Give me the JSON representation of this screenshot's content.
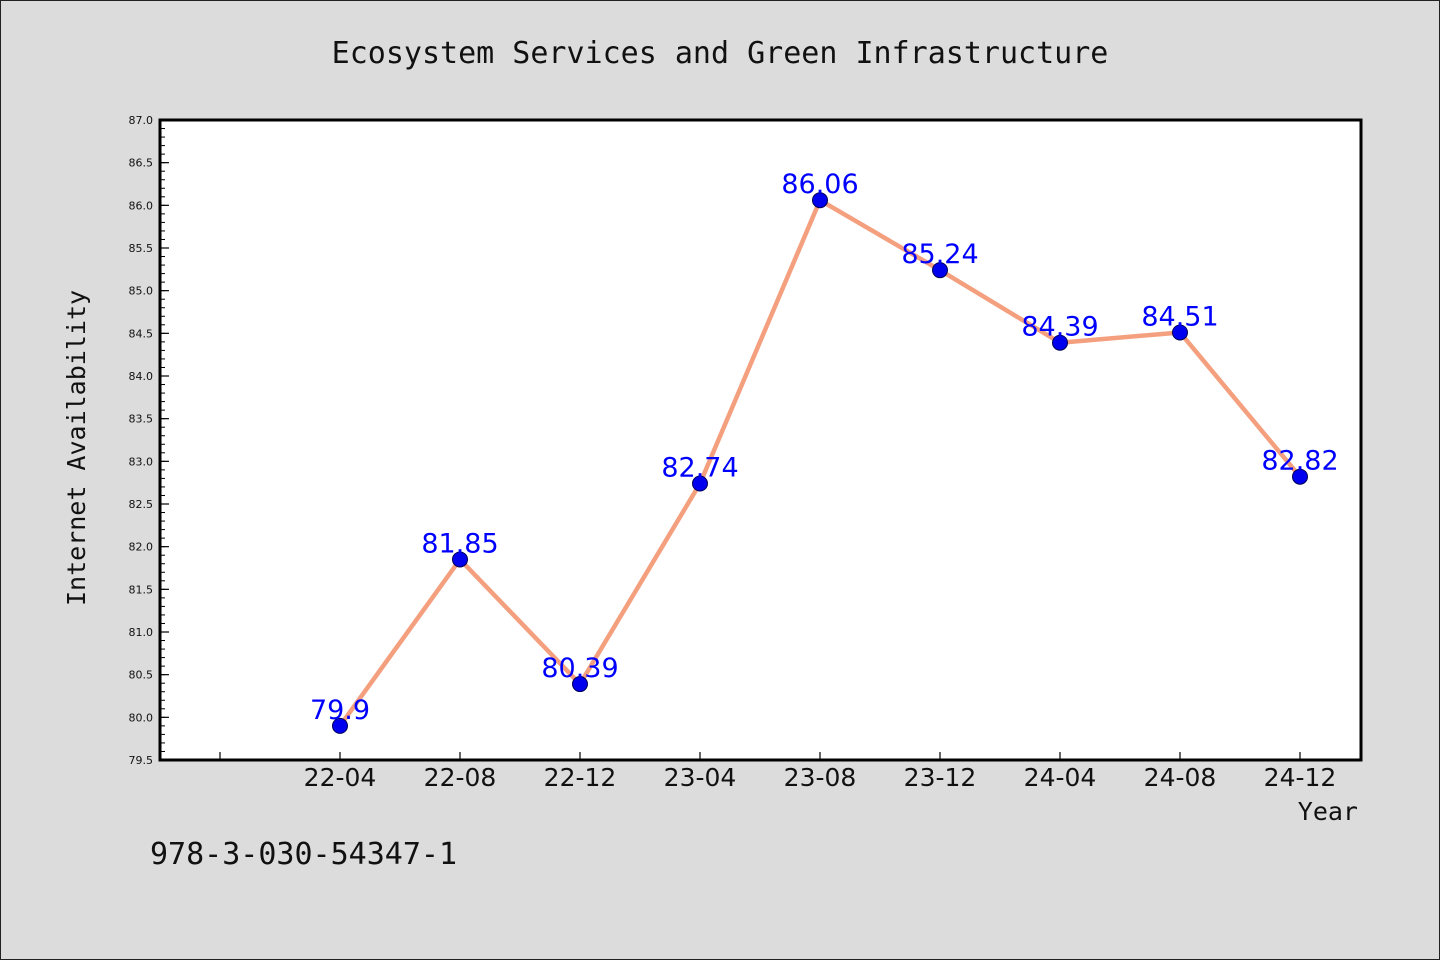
{
  "chart_data": {
    "type": "line",
    "title": "Ecosystem Services and Green Infrastructure",
    "xlabel": "Year",
    "ylabel": "Internet Availability",
    "categories": [
      "22-04",
      "22-08",
      "22-12",
      "23-04",
      "23-08",
      "23-12",
      "24-04",
      "24-08",
      "24-12"
    ],
    "series": [
      {
        "values": [
          79.9,
          81.85,
          80.39,
          82.74,
          86.06,
          85.24,
          84.39,
          84.51,
          82.82
        ]
      }
    ],
    "data_labels": [
      "79.9",
      "81.85",
      "80.39",
      "82.74",
      "86.06",
      "85.24",
      "84.39",
      "84.51",
      "82.82"
    ],
    "ylim": [
      79.5,
      87.0
    ],
    "yticks": [
      "79.5",
      "80.0",
      "80.5",
      "81.0",
      "81.5",
      "82.0",
      "82.5",
      "83.0",
      "83.5",
      "84.0",
      "84.5",
      "85.0",
      "85.5",
      "86.0",
      "86.5",
      "87.0"
    ],
    "grid": false,
    "legend": "none",
    "colors": {
      "line": "#f4a07f",
      "marker": "#0000ee",
      "label": "#0000ff",
      "background": "#dcdcdc",
      "plot_bg": "#ffffff"
    }
  },
  "footer": {
    "isbn": "978-3-030-54347-1"
  }
}
